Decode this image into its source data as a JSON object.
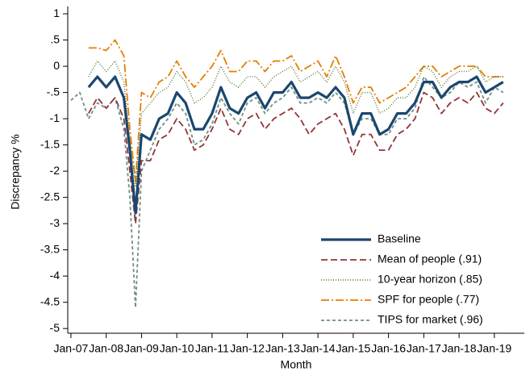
{
  "chart_data": {
    "type": "line",
    "x_label": "Month",
    "y_label": "Discrepancy %",
    "x": [
      2007.0,
      2007.25,
      2007.5,
      2007.75,
      2008.0,
      2008.25,
      2008.5,
      2008.67,
      2008.83,
      2009.0,
      2009.25,
      2009.5,
      2009.75,
      2010.0,
      2010.25,
      2010.5,
      2010.75,
      2011.0,
      2011.25,
      2011.5,
      2011.75,
      2012.0,
      2012.25,
      2012.5,
      2012.75,
      2013.0,
      2013.25,
      2013.5,
      2013.75,
      2014.0,
      2014.25,
      2014.5,
      2014.75,
      2015.0,
      2015.25,
      2015.5,
      2015.75,
      2016.0,
      2016.25,
      2016.5,
      2016.75,
      2017.0,
      2017.25,
      2017.5,
      2017.75,
      2018.0,
      2018.25,
      2018.5,
      2018.75,
      2019.0,
      2019.25
    ],
    "series": [
      {
        "name": "Baseline",
        "color": "#1a476f",
        "style": "solid",
        "values": [
          null,
          null,
          -0.4,
          -0.2,
          -0.4,
          -0.2,
          -0.6,
          -1.6,
          -2.8,
          -1.3,
          -1.4,
          -1.0,
          -0.9,
          -0.5,
          -0.7,
          -1.2,
          -1.2,
          -0.9,
          -0.4,
          -0.8,
          -0.9,
          -0.6,
          -0.5,
          -0.8,
          -0.5,
          -0.5,
          -0.3,
          -0.6,
          -0.6,
          -0.5,
          -0.6,
          -0.4,
          -0.6,
          -1.3,
          -0.9,
          -0.9,
          -1.3,
          -1.2,
          -0.9,
          -0.9,
          -0.7,
          -0.3,
          -0.3,
          -0.6,
          -0.4,
          -0.3,
          -0.3,
          -0.2,
          -0.5,
          -0.4,
          -0.3
        ]
      },
      {
        "name": "Mean of people (.91)",
        "color": "#90353b",
        "style": "dash",
        "values": [
          null,
          null,
          -0.9,
          -0.6,
          -0.8,
          -0.6,
          -1.0,
          -2.0,
          -3.0,
          -1.8,
          -1.8,
          -1.4,
          -1.3,
          -1.0,
          -1.2,
          -1.6,
          -1.5,
          -1.2,
          -0.8,
          -1.2,
          -1.3,
          -1.0,
          -0.9,
          -1.2,
          -1.0,
          -0.9,
          -0.8,
          -1.0,
          -1.3,
          -1.1,
          -1.0,
          -0.9,
          -1.2,
          -1.7,
          -1.3,
          -1.3,
          -1.6,
          -1.6,
          -1.3,
          -1.2,
          -1.0,
          -0.5,
          -0.6,
          -0.9,
          -0.7,
          -0.6,
          -0.7,
          -0.5,
          -0.8,
          -0.9,
          -0.7
        ]
      },
      {
        "name": "10-year horizon (.85)",
        "color": "#55752f",
        "style": "dot",
        "values": [
          null,
          null,
          -0.2,
          0.1,
          -0.1,
          0.1,
          -0.3,
          -1.4,
          -2.3,
          -0.9,
          -0.7,
          -0.5,
          -0.4,
          -0.1,
          -0.3,
          -0.7,
          -0.6,
          -0.4,
          0.0,
          -0.3,
          -0.4,
          -0.2,
          -0.2,
          -0.4,
          -0.2,
          -0.1,
          0.0,
          -0.3,
          -0.2,
          -0.1,
          -0.3,
          0.0,
          -0.3,
          -0.9,
          -0.5,
          -0.5,
          -0.9,
          -0.8,
          -0.6,
          -0.6,
          -0.4,
          0.0,
          -0.1,
          -0.4,
          -0.2,
          -0.1,
          -0.1,
          0.0,
          -0.3,
          -0.2,
          -0.2
        ]
      },
      {
        "name": "SPF for people (.77)",
        "color": "#e37e00",
        "style": "dashdot",
        "values": [
          null,
          null,
          0.35,
          0.35,
          0.3,
          0.5,
          0.2,
          -1.2,
          -2.2,
          -0.5,
          -0.6,
          -0.3,
          -0.2,
          0.1,
          -0.2,
          -0.4,
          -0.2,
          0.0,
          0.3,
          -0.1,
          -0.1,
          0.1,
          0.1,
          -0.1,
          0.1,
          0.1,
          0.2,
          -0.1,
          0.0,
          0.1,
          -0.2,
          0.2,
          -0.2,
          -0.7,
          -0.4,
          -0.4,
          -0.7,
          -0.6,
          -0.5,
          -0.4,
          -0.2,
          0.0,
          0.0,
          -0.2,
          -0.1,
          0.0,
          0.0,
          0.0,
          -0.2,
          -0.2,
          -0.2
        ]
      },
      {
        "name": "TIPS for market (.96)",
        "color": "#6e8e84",
        "style": "shortdash",
        "values": [
          -0.65,
          -0.5,
          -1.0,
          -0.7,
          -0.8,
          -0.6,
          -1.2,
          -2.5,
          -4.6,
          -2.0,
          -1.6,
          -1.2,
          -1.0,
          -0.7,
          -0.9,
          -1.5,
          -1.4,
          -1.1,
          -0.6,
          -0.9,
          -1.1,
          -0.7,
          -0.6,
          -0.9,
          -0.7,
          -0.6,
          -0.4,
          -0.7,
          -0.7,
          -0.6,
          -0.7,
          -0.5,
          -0.7,
          -1.3,
          -1.0,
          -1.0,
          -1.3,
          -1.3,
          -1.0,
          -1.0,
          -0.8,
          -0.2,
          -0.4,
          -0.6,
          -0.5,
          -0.3,
          -0.4,
          -0.3,
          -0.7,
          -0.4,
          -0.5
        ]
      }
    ],
    "xlim": [
      2006.91,
      2019.85
    ],
    "xticks": [
      {
        "value": 2007,
        "label": "Jan-07"
      },
      {
        "value": 2008,
        "label": "Jan-08"
      },
      {
        "value": 2009,
        "label": "Jan-09"
      },
      {
        "value": 2010,
        "label": "Jan-10"
      },
      {
        "value": 2011,
        "label": "Jan-11"
      },
      {
        "value": 2012,
        "label": "Jan-12"
      },
      {
        "value": 2013,
        "label": "Jan-13"
      },
      {
        "value": 2014,
        "label": "Jan-14"
      },
      {
        "value": 2015,
        "label": "Jan-15"
      },
      {
        "value": 2016,
        "label": "Jan-16"
      },
      {
        "value": 2017,
        "label": "Jan-17"
      },
      {
        "value": 2018,
        "label": "Jan-18"
      },
      {
        "value": 2019,
        "label": "Jan-19"
      }
    ],
    "ylim": [
      -5.09,
      1.14
    ],
    "yticks": [
      1,
      {
        "value": 0.5,
        "label": ".5"
      },
      0,
      {
        "value": -0.5,
        "label": "-.5"
      },
      -1,
      -1.5,
      -2,
      -2.5,
      -3,
      -3.5,
      -4,
      -4.5,
      -5
    ],
    "grid": false,
    "legend": "lower right"
  }
}
